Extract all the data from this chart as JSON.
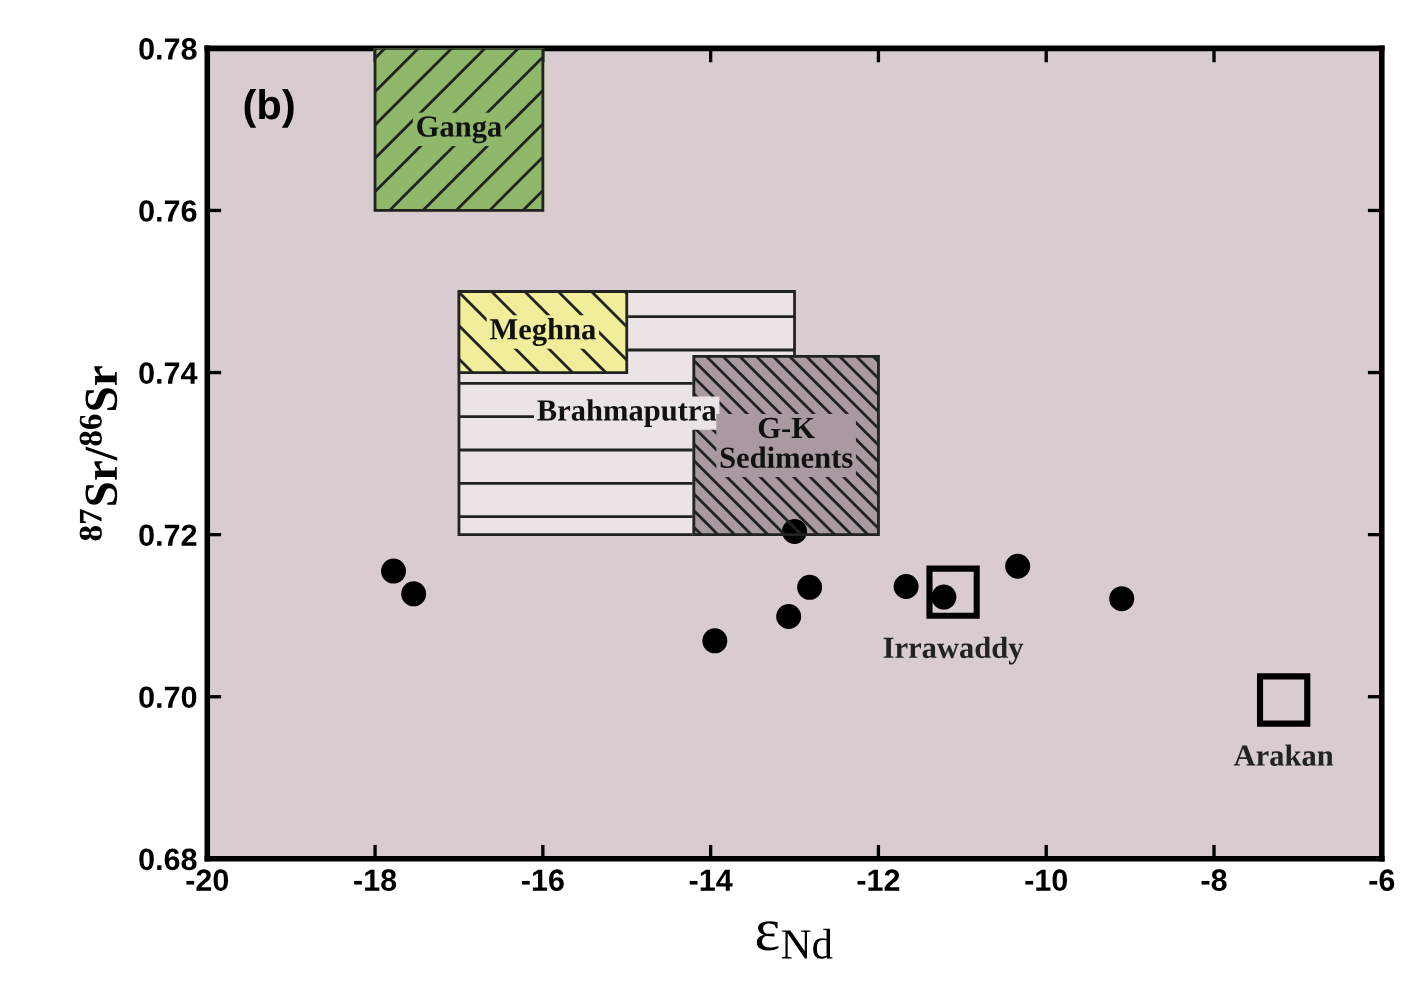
{
  "chart_data": {
    "type": "scatter",
    "xlabel": "ε$_{Nd}$",
    "ylabel": "$^{87}$Sr/$^{86}$Sr",
    "annotations": [
      "(b)"
    ],
    "xlim": [
      -20,
      -6
    ],
    "xticks": [
      -20,
      -18,
      -16,
      -14,
      -12,
      -10,
      -8,
      -6
    ],
    "ylim": [
      0.68,
      0.78
    ],
    "yticks": [
      0.68,
      {
        "value": 0.7,
        "label": "0.70"
      },
      0.72,
      0.74,
      0.76,
      0.78
    ],
    "grid": false,
    "legend": false,
    "series": [
      {
        "name": "Ganga",
        "type": "area",
        "color": "#8fb86a",
        "x": [
          -18,
          -16,
          -16,
          -18
        ],
        "values": [
          0.76,
          0.76,
          0.78,
          0.78
        ]
      },
      {
        "name": "Brahmaputra",
        "type": "area",
        "color": "#ebe3e6",
        "x": [
          -17,
          -13,
          -13,
          -17
        ],
        "values": [
          0.72,
          0.72,
          0.75,
          0.75
        ]
      },
      {
        "name": "Meghna",
        "type": "area",
        "color": "#f0ee9a",
        "x": [
          -17,
          -15,
          -15,
          -17
        ],
        "values": [
          0.74,
          0.74,
          0.75,
          0.75
        ]
      },
      {
        "name": "G-K\nSediments",
        "type": "area",
        "color": "#a89aa0",
        "x": [
          -14.2,
          -12,
          -12,
          -14.2
        ],
        "values": [
          0.72,
          0.72,
          0.742,
          0.742
        ]
      },
      {
        "color": "#000000",
        "marker": "circle",
        "x": [
          -17.78,
          -17.54,
          -13.0,
          -12.82,
          -13.07,
          -13.95,
          -11.67,
          -11.22,
          -10.34,
          -9.1
        ],
        "values": [
          0.7155,
          0.7127,
          0.7204,
          0.7135,
          0.7099,
          0.7069,
          0.7136,
          0.7123,
          0.7161,
          0.7121
        ]
      },
      {
        "name": "Irrawaddy",
        "color": "#000000",
        "marker": "square",
        "x": [
          -11.11
        ],
        "values": [
          0.7129
        ]
      },
      {
        "name": "Arakan",
        "color": "#000000",
        "marker": "square",
        "x": [
          -7.17
        ],
        "values": [
          0.6996
        ]
      }
    ]
  }
}
